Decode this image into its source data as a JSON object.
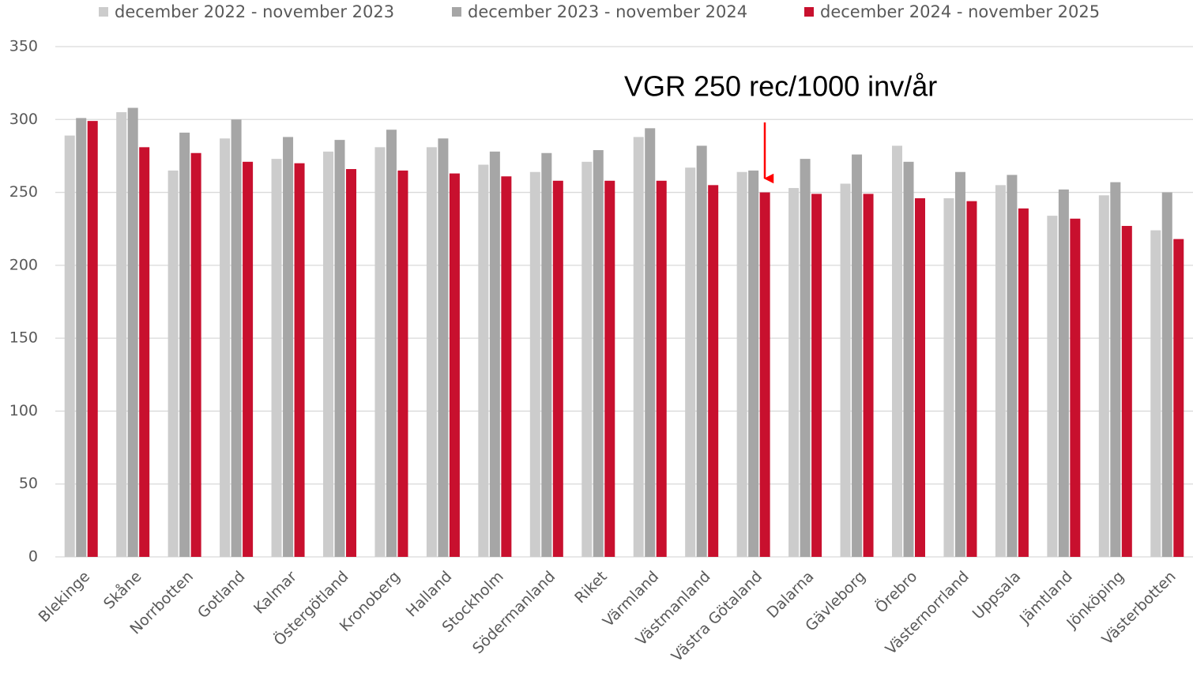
{
  "chart_data": {
    "type": "bar",
    "categories": [
      "Blekinge",
      "Skåne",
      "Norrbotten",
      "Gotland",
      "Kalmar",
      "Östergötland",
      "Kronoberg",
      "Halland",
      "Stockholm",
      "Södermanland",
      "Riket",
      "Värmland",
      "Västmanland",
      "Västra Götaland",
      "Dalarna",
      "Gävleborg",
      "Örebro",
      "Västernorrland",
      "Uppsala",
      "Jämtland",
      "Jönköping",
      "Västerbotten"
    ],
    "series": [
      {
        "name": "december 2022 - november 2023",
        "color": "#cccccc",
        "values": [
          289,
          305,
          265,
          287,
          273,
          278,
          281,
          281,
          269,
          264,
          271,
          288,
          267,
          264,
          253,
          256,
          282,
          246,
          255,
          234,
          248,
          224
        ]
      },
      {
        "name": "december 2023 - november 2024",
        "color": "#a6a6a6",
        "values": [
          301,
          308,
          291,
          300,
          288,
          286,
          293,
          287,
          278,
          277,
          279,
          294,
          282,
          265,
          273,
          276,
          271,
          264,
          262,
          252,
          257,
          250
        ]
      },
      {
        "name": "december 2024 - november 2025",
        "color": "#c8102e",
        "values": [
          299,
          281,
          277,
          271,
          270,
          266,
          265,
          263,
          261,
          258,
          258,
          258,
          255,
          250,
          249,
          249,
          246,
          244,
          239,
          232,
          227,
          218
        ]
      }
    ],
    "ylim": [
      0,
      350
    ],
    "yticks": [
      0,
      50,
      100,
      150,
      200,
      250,
      300,
      350
    ],
    "grid": true,
    "annotation": "VGR 250 rec/1000 inv/år"
  }
}
